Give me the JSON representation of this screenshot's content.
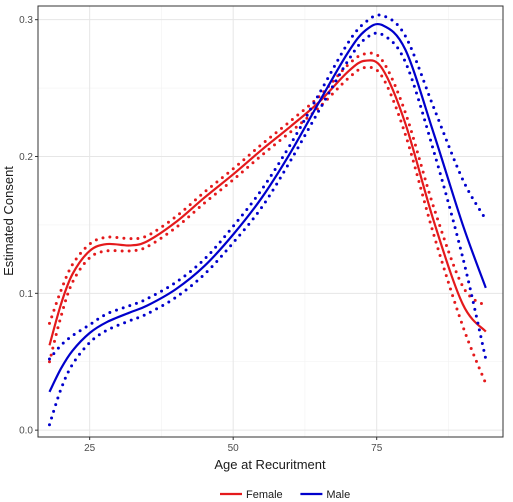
{
  "chart_data": {
    "type": "line",
    "xlabel": "Age at Recuritment",
    "ylabel": "Estimated Consent",
    "xlim": [
      16,
      97
    ],
    "ylim": [
      -0.005,
      0.31
    ],
    "xticks": [
      25,
      50,
      75
    ],
    "yticks": [
      0.0,
      0.1,
      0.2,
      0.3
    ],
    "xtick_labels": [
      "25",
      "50",
      "75"
    ],
    "ytick_labels": [
      "0.0",
      "0.1",
      "0.2",
      "0.3"
    ],
    "grid": true,
    "legend_position": "bottom",
    "series": [
      {
        "name": "Female",
        "color": "#e41a1c",
        "x": [
          18,
          20,
          22,
          25,
          28,
          32,
          35,
          40,
          45,
          50,
          55,
          60,
          65,
          70,
          73,
          76,
          80,
          85,
          90,
          94
        ],
        "y": [
          0.062,
          0.092,
          0.114,
          0.131,
          0.136,
          0.135,
          0.138,
          0.152,
          0.17,
          0.187,
          0.205,
          0.222,
          0.24,
          0.262,
          0.27,
          0.264,
          0.224,
          0.152,
          0.092,
          0.072
        ],
        "lower": [
          0.05,
          0.083,
          0.108,
          0.126,
          0.131,
          0.131,
          0.134,
          0.148,
          0.166,
          0.183,
          0.201,
          0.218,
          0.236,
          0.257,
          0.265,
          0.258,
          0.216,
          0.142,
          0.076,
          0.034
        ],
        "upper": [
          0.078,
          0.102,
          0.121,
          0.136,
          0.141,
          0.14,
          0.142,
          0.156,
          0.174,
          0.191,
          0.209,
          0.226,
          0.244,
          0.267,
          0.275,
          0.27,
          0.232,
          0.162,
          0.105,
          0.091
        ]
      },
      {
        "name": "Male",
        "color": "#0000cc",
        "x": [
          18,
          20,
          22,
          25,
          28,
          32,
          35,
          40,
          45,
          50,
          55,
          60,
          65,
          70,
          73,
          76,
          80,
          85,
          90,
          94
        ],
        "y": [
          0.028,
          0.045,
          0.058,
          0.071,
          0.079,
          0.086,
          0.091,
          0.103,
          0.12,
          0.143,
          0.17,
          0.203,
          0.24,
          0.276,
          0.292,
          0.296,
          0.278,
          0.216,
          0.15,
          0.104
        ],
        "lower": [
          0.004,
          0.03,
          0.048,
          0.064,
          0.073,
          0.08,
          0.085,
          0.097,
          0.114,
          0.137,
          0.163,
          0.197,
          0.234,
          0.27,
          0.286,
          0.289,
          0.269,
          0.203,
          0.126,
          0.052
        ],
        "upper": [
          0.052,
          0.062,
          0.069,
          0.077,
          0.085,
          0.091,
          0.096,
          0.108,
          0.125,
          0.149,
          0.176,
          0.209,
          0.246,
          0.283,
          0.298,
          0.303,
          0.288,
          0.235,
          0.183,
          0.154
        ]
      }
    ]
  }
}
